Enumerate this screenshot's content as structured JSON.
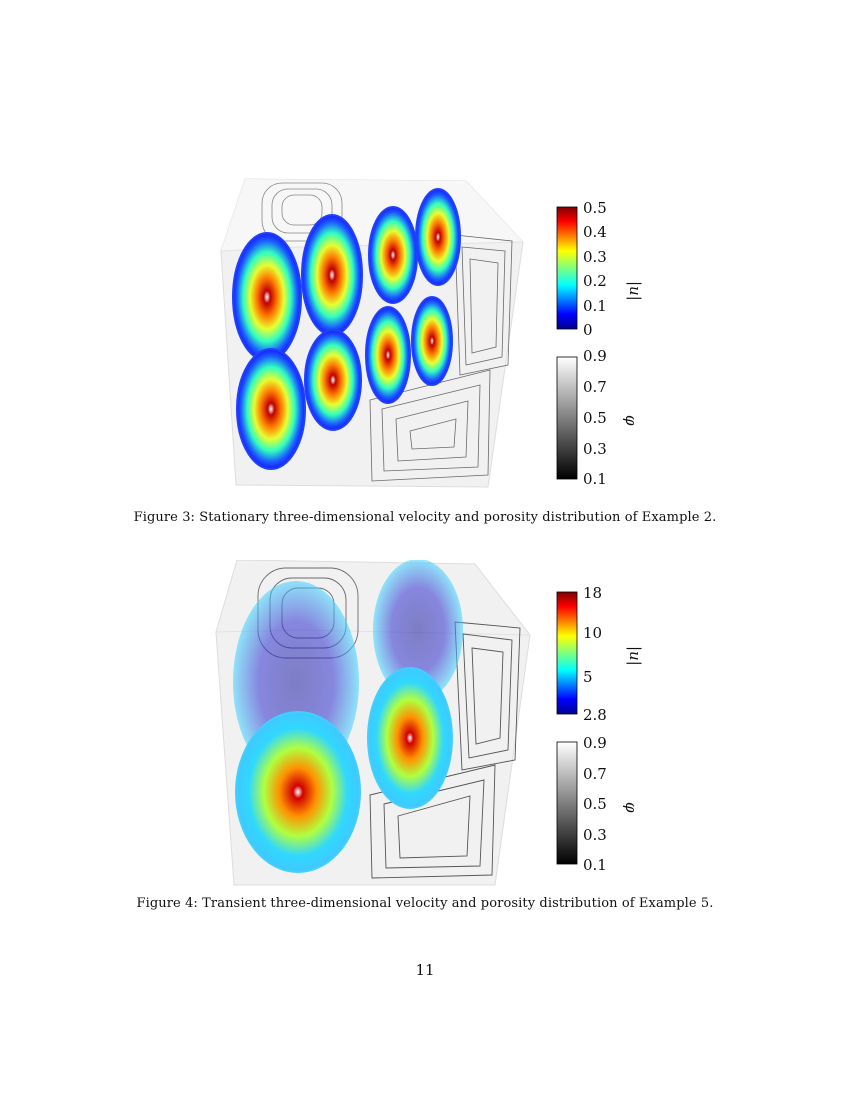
{
  "figure3": {
    "caption": "Figure 3: Stationary three-dimensional velocity and porosity distribution of Example 2.",
    "velocity_colorbar": {
      "label": "|u|",
      "ticks": [
        "0.5",
        "0.4",
        "0.3",
        "0.2",
        "0.1",
        "0"
      ]
    },
    "porosity_colorbar": {
      "label": "φ",
      "ticks": [
        "0.9",
        "0.7",
        "0.5",
        "0.3",
        "0.1"
      ]
    }
  },
  "figure4": {
    "caption": "Figure 4: Transient three-dimensional velocity and porosity distribution of Example 5.",
    "velocity_colorbar": {
      "label": "|u|",
      "ticks": [
        "18",
        "10",
        "5",
        "2.8"
      ]
    },
    "porosity_colorbar": {
      "label": "φ",
      "ticks": [
        "0.9",
        "0.7",
        "0.5",
        "0.3",
        "0.1"
      ]
    }
  },
  "page": {
    "number": "11"
  },
  "colors": {
    "jet_max": "#8b0000",
    "jet_min": "#00008f",
    "gray_max": "#ffffff",
    "gray_min": "#000000",
    "box_face": "#eeeeee"
  }
}
